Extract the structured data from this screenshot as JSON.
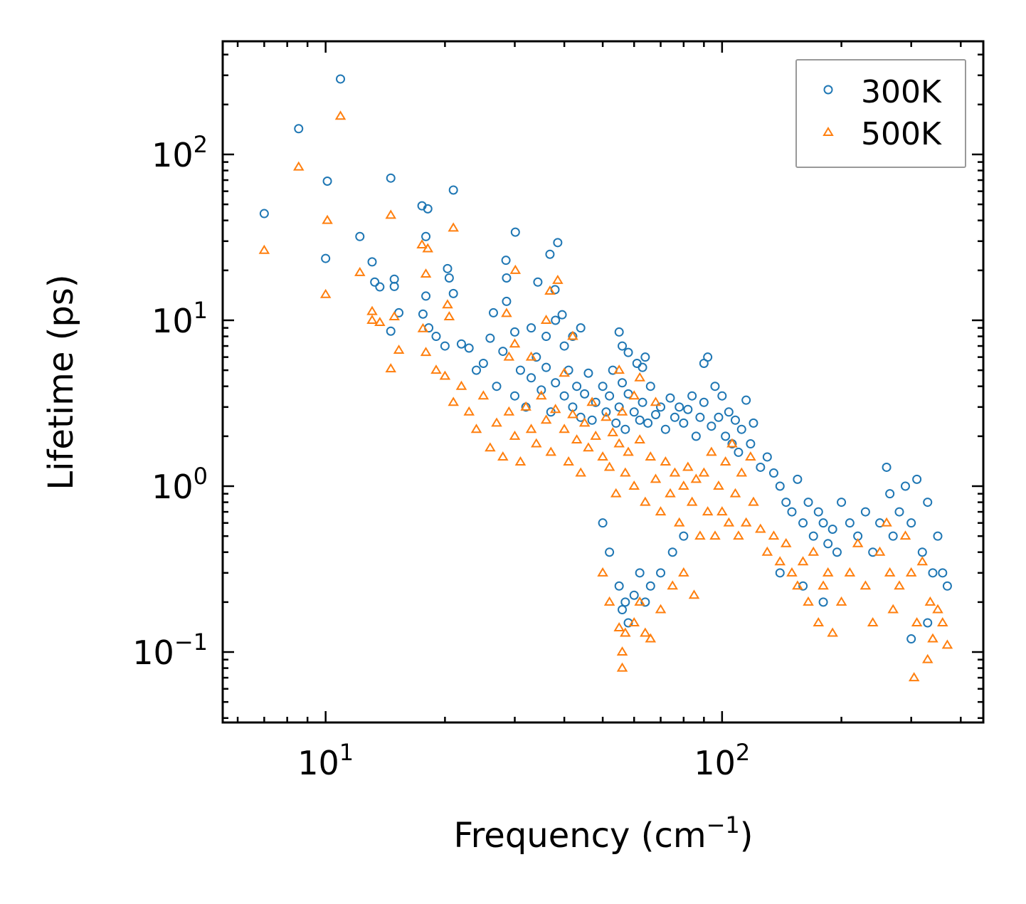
{
  "chart_data": {
    "type": "scatter",
    "title": "",
    "xlabel": "Frequency (cm",
    "xlabel_sup": "−1",
    "xlabel_close": ")",
    "ylabel": "Lifetime (ps)",
    "xscale": "log",
    "yscale": "log",
    "xlim": [
      5.5,
      456
    ],
    "ylim": [
      0.0376,
      481
    ],
    "x_ticks": [
      {
        "value": 10,
        "base": "10",
        "exp": "1"
      },
      {
        "value": 100,
        "base": "10",
        "exp": "2"
      }
    ],
    "y_ticks": [
      {
        "value": 100,
        "base": "10",
        "exp": "2"
      },
      {
        "value": 10,
        "base": "10",
        "exp": "1"
      },
      {
        "value": 1,
        "base": "10",
        "exp": "0"
      },
      {
        "value": 0.1,
        "base": "10",
        "exp": "−1"
      }
    ],
    "grid": false,
    "legend_position": "top-right",
    "series": [
      {
        "name": "300K",
        "marker": "circle-open",
        "color": "#1f77b4",
        "points": [
          [
            7.0,
            44
          ],
          [
            8.55,
            143
          ],
          [
            10.1,
            69
          ],
          [
            10.9,
            285
          ],
          [
            10.0,
            23.6
          ],
          [
            12.2,
            32
          ],
          [
            13.1,
            22.5
          ],
          [
            13.3,
            17
          ],
          [
            13.7,
            15.9
          ],
          [
            14.6,
            72
          ],
          [
            14.9,
            17.7
          ],
          [
            14.9,
            16
          ],
          [
            15.3,
            11.1
          ],
          [
            14.6,
            8.6
          ],
          [
            17.5,
            49
          ],
          [
            18.1,
            47
          ],
          [
            17.9,
            32
          ],
          [
            17.6,
            10.9
          ],
          [
            17.9,
            14
          ],
          [
            18.2,
            9.0
          ],
          [
            21,
            61
          ],
          [
            20.3,
            20.5
          ],
          [
            21,
            14.5
          ],
          [
            20.5,
            18
          ],
          [
            30.1,
            34
          ],
          [
            28.5,
            23
          ],
          [
            28.6,
            18
          ],
          [
            26.5,
            11.1
          ],
          [
            38.5,
            29.4
          ],
          [
            36.8,
            25
          ],
          [
            34.3,
            17
          ],
          [
            37.9,
            15.3
          ],
          [
            39.5,
            10.8
          ],
          [
            28.6,
            13
          ],
          [
            19,
            8
          ],
          [
            20,
            7
          ],
          [
            22,
            7.2
          ],
          [
            23,
            6.8
          ],
          [
            24,
            5
          ],
          [
            26,
            7.8
          ],
          [
            25,
            5.5
          ],
          [
            27,
            4
          ],
          [
            28,
            6.5
          ],
          [
            30,
            3.5
          ],
          [
            31,
            5
          ],
          [
            32,
            3
          ],
          [
            33,
            4.5
          ],
          [
            34,
            6
          ],
          [
            35,
            3.8
          ],
          [
            36,
            5.2
          ],
          [
            37,
            2.8
          ],
          [
            38,
            4.2
          ],
          [
            40,
            3.5
          ],
          [
            41,
            5
          ],
          [
            42,
            3
          ],
          [
            43,
            4
          ],
          [
            44,
            2.6
          ],
          [
            45,
            3.6
          ],
          [
            46,
            4.8
          ],
          [
            47,
            2.5
          ],
          [
            48,
            3.2
          ],
          [
            50,
            4
          ],
          [
            51,
            2.8
          ],
          [
            52,
            3.5
          ],
          [
            53,
            5
          ],
          [
            54,
            2.4
          ],
          [
            55,
            3
          ],
          [
            56,
            4.2
          ],
          [
            57,
            2.2
          ],
          [
            58,
            3.6
          ],
          [
            60,
            2.8
          ],
          [
            61,
            5.5
          ],
          [
            62,
            2.5
          ],
          [
            63,
            3.2
          ],
          [
            64,
            6
          ],
          [
            65,
            2.4
          ],
          [
            66,
            4
          ],
          [
            68,
            2.7
          ],
          [
            70,
            3
          ],
          [
            72,
            2.2
          ],
          [
            74,
            3.4
          ],
          [
            76,
            2.6
          ],
          [
            78,
            3
          ],
          [
            80,
            2.4
          ],
          [
            82,
            2.9
          ],
          [
            84,
            3.5
          ],
          [
            86,
            2
          ],
          [
            88,
            2.6
          ],
          [
            90,
            3.2
          ],
          [
            92,
            6
          ],
          [
            94,
            2.3
          ],
          [
            96,
            4
          ],
          [
            98,
            2.6
          ],
          [
            100,
            3.5
          ],
          [
            102,
            2
          ],
          [
            104,
            2.8
          ],
          [
            106,
            1.8
          ],
          [
            108,
            2.5
          ],
          [
            110,
            1.6
          ],
          [
            112,
            2.2
          ],
          [
            115,
            3.3
          ],
          [
            118,
            1.8
          ],
          [
            120,
            2.4
          ],
          [
            125,
            1.3
          ],
          [
            130,
            1.5
          ],
          [
            135,
            1.2
          ],
          [
            140,
            1.0
          ],
          [
            145,
            0.8
          ],
          [
            150,
            0.7
          ],
          [
            155,
            1.1
          ],
          [
            160,
            0.6
          ],
          [
            165,
            0.8
          ],
          [
            170,
            0.5
          ],
          [
            175,
            0.7
          ],
          [
            180,
            0.6
          ],
          [
            185,
            0.45
          ],
          [
            190,
            0.55
          ],
          [
            195,
            0.4
          ],
          [
            200,
            0.8
          ],
          [
            210,
            0.6
          ],
          [
            220,
            0.5
          ],
          [
            230,
            0.7
          ],
          [
            240,
            0.4
          ],
          [
            250,
            0.6
          ],
          [
            260,
            1.3
          ],
          [
            265,
            0.9
          ],
          [
            270,
            0.5
          ],
          [
            280,
            0.7
          ],
          [
            290,
            1.0
          ],
          [
            300,
            0.6
          ],
          [
            310,
            1.1
          ],
          [
            320,
            0.4
          ],
          [
            330,
            0.8
          ],
          [
            340,
            0.3
          ],
          [
            350,
            0.5
          ],
          [
            360,
            0.3
          ],
          [
            370,
            0.25
          ],
          [
            300,
            0.12
          ],
          [
            330,
            0.15
          ],
          [
            50,
            0.6
          ],
          [
            52,
            0.4
          ],
          [
            55,
            0.25
          ],
          [
            56,
            0.18
          ],
          [
            57,
            0.2
          ],
          [
            58,
            0.15
          ],
          [
            60,
            0.22
          ],
          [
            62,
            0.3
          ],
          [
            64,
            0.2
          ],
          [
            66,
            0.25
          ],
          [
            70,
            0.3
          ],
          [
            75,
            0.4
          ],
          [
            80,
            0.5
          ],
          [
            140,
            0.3
          ],
          [
            160,
            0.25
          ],
          [
            180,
            0.2
          ],
          [
            55,
            8.5
          ],
          [
            56,
            7
          ],
          [
            58,
            6.4
          ],
          [
            63,
            5.2
          ],
          [
            90,
            5.5
          ],
          [
            42,
            8
          ],
          [
            44,
            9
          ],
          [
            30,
            8.5
          ],
          [
            33,
            9
          ],
          [
            36,
            8
          ],
          [
            38,
            10
          ],
          [
            40,
            7
          ]
        ]
      },
      {
        "name": "500K",
        "marker": "triangle-open",
        "color": "#ff7f0e",
        "points": [
          [
            7.0,
            26.4
          ],
          [
            8.55,
            84
          ],
          [
            10.1,
            40
          ],
          [
            10.9,
            170
          ],
          [
            10.0,
            14.3
          ],
          [
            12.2,
            19.4
          ],
          [
            13.1,
            11.3
          ],
          [
            13.1,
            10
          ],
          [
            13.7,
            9.7
          ],
          [
            14.6,
            43
          ],
          [
            14.6,
            5.1
          ],
          [
            15.3,
            6.6
          ],
          [
            14.9,
            10.5
          ],
          [
            17.5,
            28.5
          ],
          [
            18.1,
            27
          ],
          [
            17.9,
            19
          ],
          [
            17.6,
            8.9
          ],
          [
            17.9,
            6.4
          ],
          [
            21,
            36
          ],
          [
            20.3,
            12.4
          ],
          [
            20.5,
            10.5
          ],
          [
            30.1,
            20
          ],
          [
            38.5,
            17.4
          ],
          [
            36.8,
            15
          ],
          [
            28.6,
            11
          ],
          [
            19,
            5
          ],
          [
            20,
            4.6
          ],
          [
            21,
            3.2
          ],
          [
            22,
            4
          ],
          [
            23,
            2.8
          ],
          [
            24,
            2.2
          ],
          [
            25,
            3.5
          ],
          [
            26,
            1.7
          ],
          [
            27,
            2.4
          ],
          [
            28,
            1.5
          ],
          [
            29,
            2.8
          ],
          [
            30,
            2
          ],
          [
            31,
            1.4
          ],
          [
            32,
            3
          ],
          [
            33,
            2.2
          ],
          [
            34,
            1.8
          ],
          [
            35,
            3.5
          ],
          [
            36,
            2.5
          ],
          [
            37,
            1.6
          ],
          [
            38,
            2.9
          ],
          [
            40,
            2.2
          ],
          [
            41,
            1.4
          ],
          [
            42,
            2.7
          ],
          [
            43,
            1.9
          ],
          [
            44,
            1.2
          ],
          [
            45,
            2.4
          ],
          [
            46,
            1.7
          ],
          [
            47,
            3.2
          ],
          [
            48,
            2
          ],
          [
            50,
            1.5
          ],
          [
            51,
            2.6
          ],
          [
            52,
            1.3
          ],
          [
            53,
            2.1
          ],
          [
            54,
            0.9
          ],
          [
            55,
            1.8
          ],
          [
            56,
            2.8
          ],
          [
            57,
            1.2
          ],
          [
            58,
            1.6
          ],
          [
            60,
            1
          ],
          [
            62,
            1.9
          ],
          [
            64,
            0.8
          ],
          [
            66,
            1.5
          ],
          [
            68,
            1.1
          ],
          [
            70,
            0.7
          ],
          [
            72,
            1.4
          ],
          [
            74,
            0.9
          ],
          [
            76,
            1.2
          ],
          [
            78,
            0.6
          ],
          [
            80,
            1.0
          ],
          [
            82,
            1.3
          ],
          [
            84,
            0.8
          ],
          [
            86,
            1.1
          ],
          [
            88,
            0.5
          ],
          [
            90,
            1.2
          ],
          [
            92,
            0.7
          ],
          [
            94,
            1.6
          ],
          [
            96,
            0.5
          ],
          [
            98,
            1.0
          ],
          [
            100,
            0.7
          ],
          [
            102,
            1.4
          ],
          [
            104,
            0.6
          ],
          [
            106,
            1.8
          ],
          [
            108,
            0.9
          ],
          [
            110,
            0.5
          ],
          [
            112,
            1.2
          ],
          [
            115,
            0.6
          ],
          [
            118,
            1.5
          ],
          [
            120,
            0.8
          ],
          [
            125,
            0.55
          ],
          [
            130,
            0.4
          ],
          [
            135,
            0.5
          ],
          [
            140,
            0.35
          ],
          [
            145,
            0.45
          ],
          [
            150,
            0.3
          ],
          [
            155,
            0.25
          ],
          [
            160,
            0.35
          ],
          [
            165,
            0.2
          ],
          [
            170,
            0.4
          ],
          [
            175,
            0.15
          ],
          [
            180,
            0.25
          ],
          [
            185,
            0.3
          ],
          [
            190,
            0.13
          ],
          [
            200,
            0.2
          ],
          [
            210,
            0.3
          ],
          [
            220,
            0.45
          ],
          [
            230,
            0.25
          ],
          [
            240,
            0.15
          ],
          [
            250,
            0.4
          ],
          [
            260,
            0.6
          ],
          [
            265,
            0.3
          ],
          [
            270,
            0.18
          ],
          [
            280,
            0.25
          ],
          [
            290,
            0.5
          ],
          [
            300,
            0.3
          ],
          [
            305,
            0.07
          ],
          [
            310,
            0.15
          ],
          [
            320,
            0.35
          ],
          [
            330,
            0.09
          ],
          [
            335,
            0.2
          ],
          [
            340,
            0.12
          ],
          [
            350,
            0.18
          ],
          [
            360,
            0.15
          ],
          [
            370,
            0.11
          ],
          [
            50,
            0.3
          ],
          [
            52,
            0.2
          ],
          [
            55,
            0.14
          ],
          [
            56,
            0.1
          ],
          [
            56,
            0.08
          ],
          [
            57,
            0.13
          ],
          [
            60,
            0.15
          ],
          [
            62,
            0.2
          ],
          [
            64,
            0.13
          ],
          [
            66,
            0.12
          ],
          [
            70,
            0.18
          ],
          [
            75,
            0.25
          ],
          [
            80,
            0.3
          ],
          [
            85,
            0.22
          ],
          [
            62,
            4.5
          ],
          [
            55,
            5
          ],
          [
            68,
            3.2
          ],
          [
            60,
            3.5
          ],
          [
            40,
            4.8
          ],
          [
            42,
            8
          ],
          [
            33,
            6
          ],
          [
            30,
            7.2
          ],
          [
            36,
            10
          ],
          [
            29,
            6
          ]
        ]
      }
    ]
  }
}
